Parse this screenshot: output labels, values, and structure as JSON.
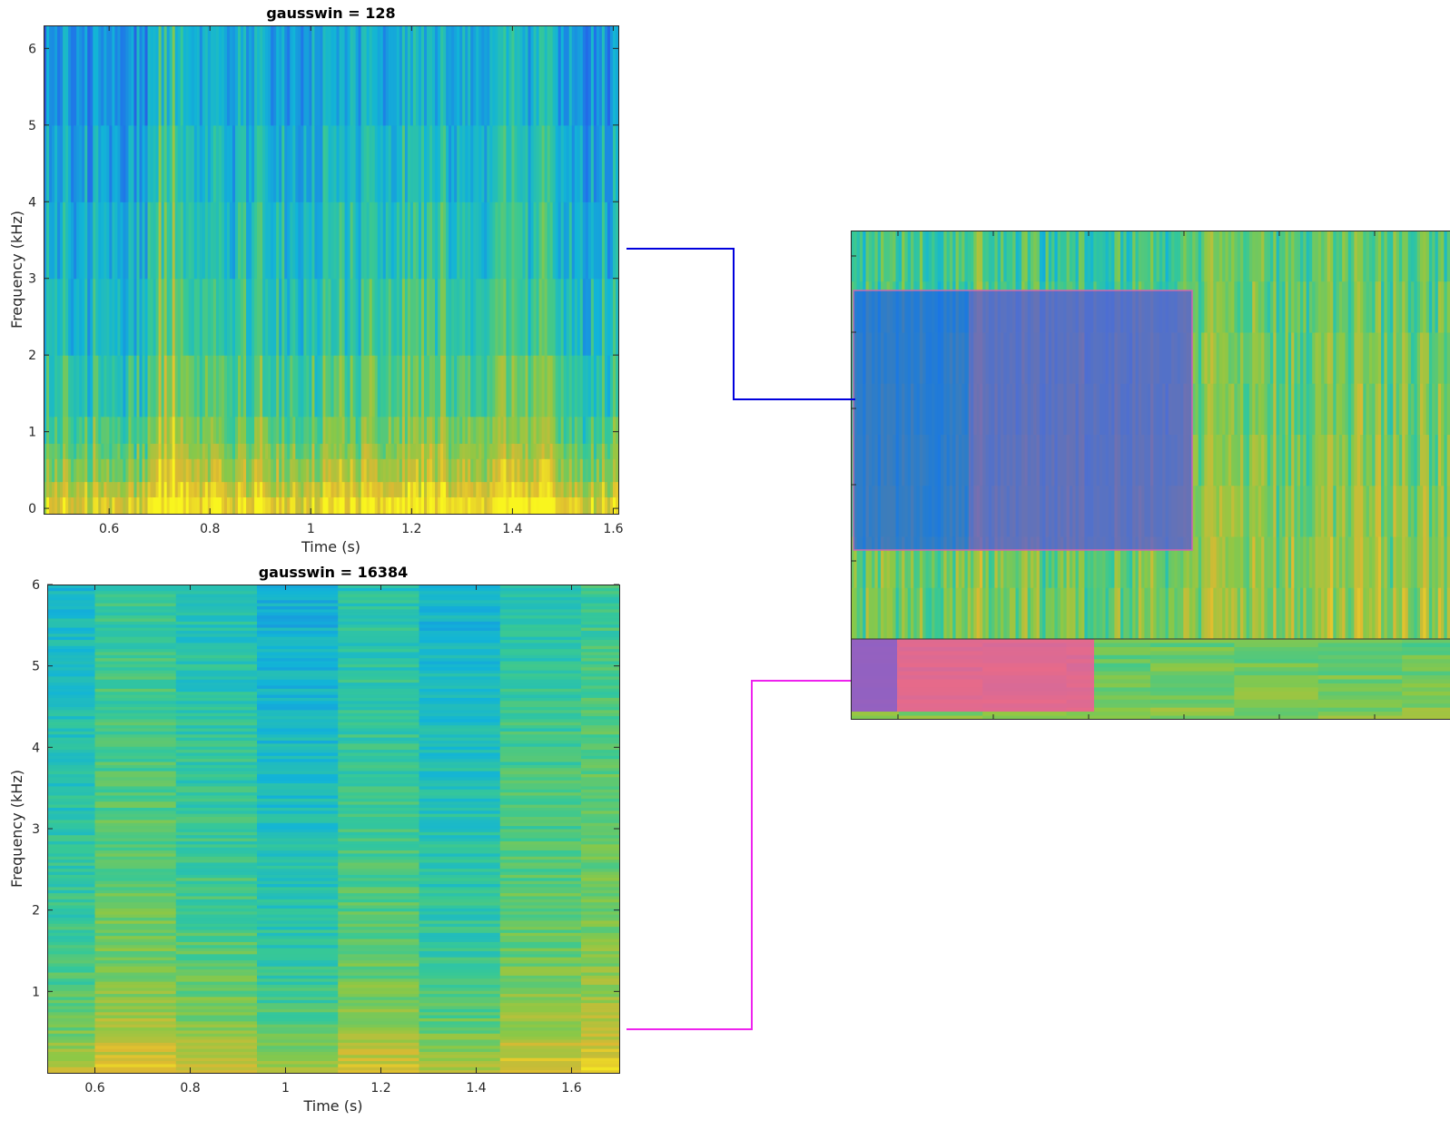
{
  "chart_data": [
    {
      "type": "heatmap",
      "title": "gausswin = 128",
      "xlabel": "Time (s)",
      "ylabel": "Frequency (kHz)",
      "xlim": [
        0.47,
        1.61
      ],
      "ylim": [
        -0.07,
        6.3
      ],
      "xticks": [
        0.6,
        0.8,
        1,
        1.2,
        1.4,
        1.6
      ],
      "xticklabels": [
        "0.6",
        "0.8",
        "1",
        "1.2",
        "1.4",
        "1.6"
      ],
      "yticks": [
        0,
        1,
        2,
        3,
        4,
        5,
        6
      ],
      "yticklabels": [
        "0",
        "1",
        "2",
        "3",
        "4",
        "5",
        "6"
      ],
      "grid": false,
      "colormap": "parula",
      "description_of_values": "fine time resolution spectrogram; strong energy below 0.8 kHz, bright vertical stripe near 0.71 s"
    },
    {
      "type": "heatmap",
      "title": "gausswin = 16384",
      "xlabel": "Time (s)",
      "ylabel": "Frequency (kHz)",
      "xlim": [
        0.5,
        1.7
      ],
      "ylim": [
        0,
        6
      ],
      "xticks": [
        0.6,
        0.8,
        1,
        1.2,
        1.4,
        1.6
      ],
      "xticklabels": [
        "0.6",
        "0.8",
        "1",
        "1.2",
        "1.4",
        "1.6"
      ],
      "yticks": [
        1,
        2,
        3,
        4,
        5,
        6
      ],
      "yticklabels": [
        "1",
        "2",
        "3",
        "4",
        "5",
        "6"
      ],
      "grid": false,
      "colormap": "parula",
      "description_of_values": "fine frequency resolution spectrogram with wide time blocks; energy strongest below 0.8 kHz"
    }
  ],
  "connectors": {
    "blue_color": "#0000dd",
    "magenta_color": "#ee22ee"
  },
  "colors": {
    "highlight_blue": "#1f5fe8",
    "highlight_pink": "#ff4f9e",
    "highlight_purple": "#7a5fd0"
  }
}
